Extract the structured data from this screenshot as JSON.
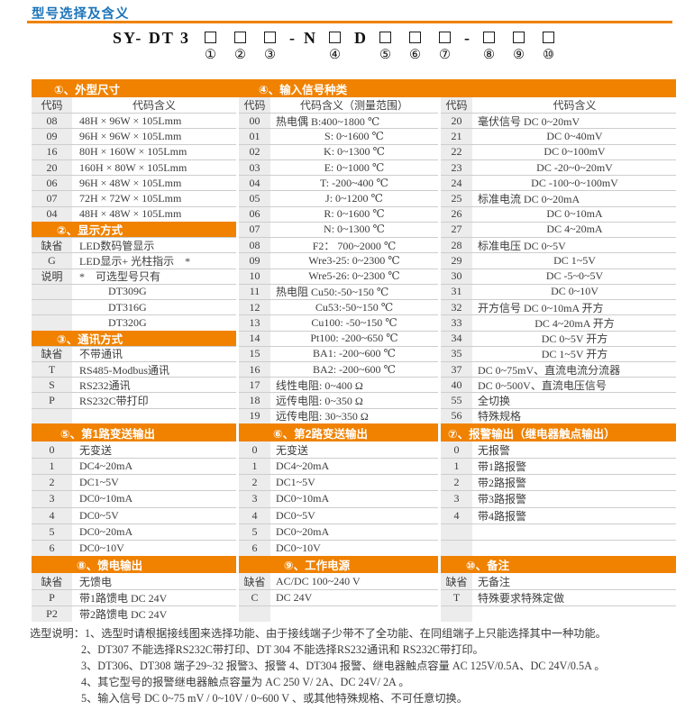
{
  "title": "型号选择及含义",
  "model": {
    "prefix": "SY- DT 3",
    "sep1": "-",
    "n": "N",
    "d": "D",
    "sep2": "-",
    "positions": [
      "①",
      "②",
      "③",
      "④",
      "⑤",
      "⑥",
      "⑦",
      "⑧",
      "⑨",
      "⑩"
    ]
  },
  "tables": {
    "dim": {
      "title": "①、外型尺寸",
      "headers": [
        "代码",
        "代码含义"
      ],
      "rows": [
        {
          "c": "08",
          "t": "48H × 96W × 105Lmm"
        },
        {
          "c": "09",
          "t": "96H × 96W × 105Lmm"
        },
        {
          "c": "16",
          "t": "80H × 160W × 105Lmm"
        },
        {
          "c": "20",
          "t": "160H × 80W × 105Lmm"
        },
        {
          "c": "06",
          "t": "96H × 48W × 105Lmm"
        },
        {
          "c": "07",
          "t": "72H × 72W × 105Lmm"
        },
        {
          "c": "04",
          "t": "48H × 48W × 105Lmm"
        }
      ]
    },
    "display": {
      "title": "②、显示方式",
      "rows": [
        {
          "c": "缺省",
          "t": "LED数码管显示"
        },
        {
          "c": "G",
          "t": "LED显示+ 光柱指示　*"
        },
        {
          "c": "说明",
          "t": "*　可选型号只有"
        },
        {
          "c": "",
          "t": "DT309G",
          "i": 1
        },
        {
          "c": "",
          "t": "DT316G",
          "i": 1
        },
        {
          "c": "",
          "t": "DT320G",
          "i": 1
        }
      ]
    },
    "comm": {
      "title": "③、通讯方式",
      "rows": [
        {
          "c": "缺省",
          "t": "不带通讯"
        },
        {
          "c": "T",
          "t": "RS485-Modbus通讯"
        },
        {
          "c": "S",
          "t": "RS232通讯"
        },
        {
          "c": "P",
          "t": "RS232C带打印"
        }
      ]
    },
    "input": {
      "title": "④、输入信号种类",
      "headers1": [
        "代码",
        "代码含义（测量范围）"
      ],
      "headers2": [
        "代码",
        "代码含义"
      ],
      "rows1": [
        {
          "c": "00",
          "g": "热电偶",
          "t": "B:400~1800 ℃"
        },
        {
          "c": "01",
          "t": "S: 0~1600 ℃"
        },
        {
          "c": "02",
          "t": "K: 0~1300 ℃"
        },
        {
          "c": "03",
          "t": "E: 0~1000 ℃"
        },
        {
          "c": "04",
          "t": "T: -200~400 ℃"
        },
        {
          "c": "05",
          "t": "J: 0~1200 ℃"
        },
        {
          "c": "06",
          "t": "R: 0~1600 ℃"
        },
        {
          "c": "07",
          "t": "N: 0~1300 ℃"
        },
        {
          "c": "08",
          "t": "F2： 700~2000 ℃"
        },
        {
          "c": "09",
          "t": "Wre3-25: 0~2300 ℃"
        },
        {
          "c": "10",
          "t": "Wre5-26: 0~2300 ℃"
        },
        {
          "c": "11",
          "g": "热电阻",
          "t": "Cu50:-50~150 ℃"
        },
        {
          "c": "12",
          "t": "Cu53:-50~150 ℃"
        },
        {
          "c": "13",
          "t": "Cu100: -50~150 ℃"
        },
        {
          "c": "14",
          "t": "Pt100: -200~650 ℃"
        },
        {
          "c": "15",
          "t": "BA1: -200~600 ℃"
        },
        {
          "c": "16",
          "t": "BA2: -200~600 ℃"
        },
        {
          "c": "17",
          "t": "线性电阻: 0~400 Ω",
          "a": "l"
        },
        {
          "c": "18",
          "t": "远传电阻: 0~350 Ω",
          "a": "l"
        },
        {
          "c": "19",
          "t": "远传电阻: 30~350 Ω",
          "a": "l"
        }
      ],
      "rows2": [
        {
          "c": "20",
          "g": "毫伏信号",
          "t": "DC 0~20mV"
        },
        {
          "c": "21",
          "t": "DC 0~40mV"
        },
        {
          "c": "22",
          "t": "DC 0~100mV"
        },
        {
          "c": "23",
          "t": "DC -20~0~20mV"
        },
        {
          "c": "24",
          "t": "DC -100~0~100mV"
        },
        {
          "c": "25",
          "g": "标准电流",
          "t": "DC 0~20mA"
        },
        {
          "c": "26",
          "t": "DC 0~10mA"
        },
        {
          "c": "27",
          "t": "DC 4~20mA"
        },
        {
          "c": "28",
          "g": "标准电压",
          "t": "DC 0~5V"
        },
        {
          "c": "29",
          "t": "DC 1~5V"
        },
        {
          "c": "30",
          "t": "DC -5~0~5V"
        },
        {
          "c": "31",
          "t": "DC 0~10V"
        },
        {
          "c": "32",
          "g": "开方信号",
          "t": "DC 0~10mA 开方"
        },
        {
          "c": "33",
          "t": "DC 4~20mA 开方"
        },
        {
          "c": "34",
          "t": "DC 0~5V 开方"
        },
        {
          "c": "35",
          "t": "DC 1~5V 开方"
        },
        {
          "c": "37",
          "t": "DC 0~75mV、直流电流分流器",
          "a": "l"
        },
        {
          "c": "40",
          "t": "DC 0~500V、直流电压信号",
          "a": "l"
        },
        {
          "c": "55",
          "t": "全切换",
          "a": "l"
        },
        {
          "c": "56",
          "t": "特殊规格",
          "a": "l"
        }
      ]
    },
    "out1": {
      "title": "⑤、第1路变送输出",
      "rows": [
        {
          "c": "0",
          "t": "无变送"
        },
        {
          "c": "1",
          "t": "DC4~20mA"
        },
        {
          "c": "2",
          "t": "DC1~5V"
        },
        {
          "c": "3",
          "t": "DC0~10mA"
        },
        {
          "c": "4",
          "t": "DC0~5V"
        },
        {
          "c": "5",
          "t": "DC0~20mA"
        },
        {
          "c": "6",
          "t": "DC0~10V"
        }
      ]
    },
    "out2": {
      "title": "⑥、第2路变送输出",
      "rows": [
        {
          "c": "0",
          "t": "无变送"
        },
        {
          "c": "1",
          "t": "DC4~20mA"
        },
        {
          "c": "2",
          "t": "DC1~5V"
        },
        {
          "c": "3",
          "t": "DC0~10mA"
        },
        {
          "c": "4",
          "t": "DC0~5V"
        },
        {
          "c": "5",
          "t": "DC0~20mA"
        },
        {
          "c": "6",
          "t": "DC0~10V"
        }
      ]
    },
    "alarm": {
      "title": "⑦、报警输出（继电器触点输出）",
      "rows": [
        {
          "c": "0",
          "t": "无报警"
        },
        {
          "c": "1",
          "t": "带1路报警"
        },
        {
          "c": "2",
          "t": "带2路报警"
        },
        {
          "c": "3",
          "t": "带3路报警"
        },
        {
          "c": "4",
          "t": "带4路报警"
        }
      ]
    },
    "feed": {
      "title": "⑧、馈电输出",
      "rows": [
        {
          "c": "缺省",
          "t": "无馈电"
        },
        {
          "c": "P",
          "t": "带1路馈电 DC 24V"
        },
        {
          "c": "P2",
          "t": "带2路馈电 DC 24V"
        }
      ]
    },
    "power": {
      "title": "⑨、工作电源",
      "rows": [
        {
          "c": "缺省",
          "t": "AC/DC 100~240 V"
        },
        {
          "c": "C",
          "t": "DC 24V"
        }
      ]
    },
    "remark": {
      "title": "⑩、备注",
      "rows": [
        {
          "c": "缺省",
          "t": "无备注"
        },
        {
          "c": "T",
          "t": "特殊要求特殊定做"
        }
      ]
    }
  },
  "notes": {
    "label": "选型说明：",
    "items": [
      "1、选型时请根据接线图来选择功能、由于接线端子少带不了全功能、在同组端子上只能选择其中一种功能。",
      "2、DT307 不能选择RS232C带打印、DT 304 不能选择RS232通讯和 RS232C带打印。",
      "3、DT306、DT308 端子29~32 报警3、报警 4、DT304 报警、继电器触点容量 AC 125V/0.5A、DC 24V/0.5A 。",
      "4、其它型号的报警继电器触点容量为 AC 250 V/ 2A、DC 24V/ 2A 。",
      "5、输入信号 DC 0~75 mV / 0~10V / 0~600 V 、或其他特殊规格、不可任意切换。"
    ]
  },
  "colors": {
    "accent": "#f08200",
    "title_blue": "#1c74b9",
    "code_bg": "#ececec",
    "row_line": "#cdcdcd"
  }
}
